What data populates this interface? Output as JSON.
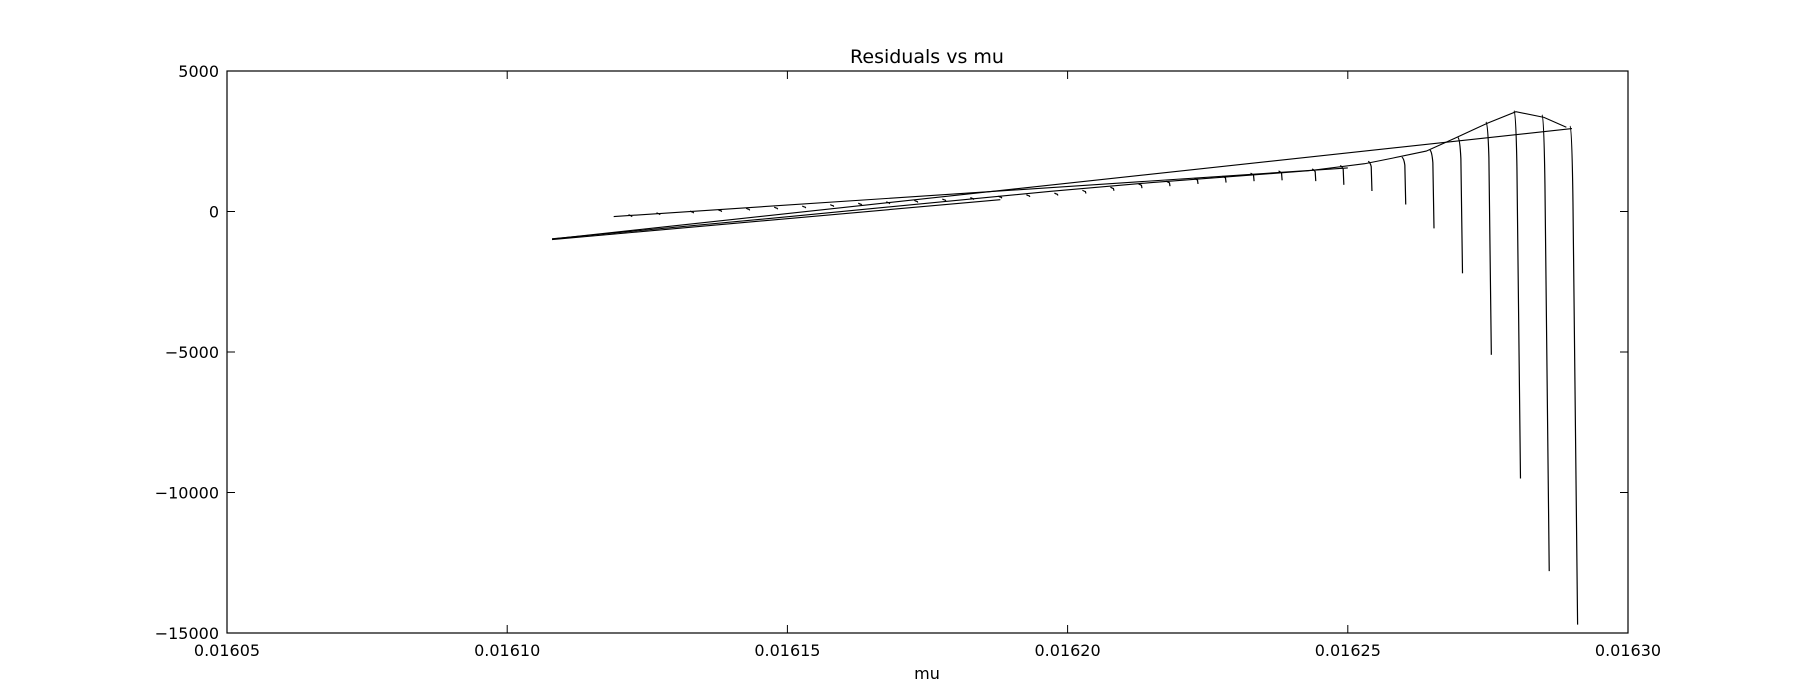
{
  "chart_data": {
    "type": "line",
    "title": "Residuals vs mu",
    "xlabel": "mu",
    "ylabel": "",
    "xlim": [
      0.01605,
      0.0163
    ],
    "ylim": [
      -15000,
      5000
    ],
    "x_ticks": [
      0.01605,
      0.0161,
      0.01615,
      0.0162,
      0.01625,
      0.0163
    ],
    "x_tick_labels": [
      "0.01605",
      "0.01610",
      "0.01615",
      "0.01620",
      "0.01625",
      "0.01630"
    ],
    "y_ticks": [
      5000,
      0,
      -5000,
      -10000,
      -15000
    ],
    "y_tick_labels": [
      "5000",
      "0",
      "−5000",
      "−10000",
      "−15000"
    ],
    "grid": false,
    "line_color": "#000000",
    "series": [
      {
        "values": [
          [
            0.016108,
            -1000
          ],
          [
            0.016188,
            420
          ]
        ]
      },
      {
        "values": [
          [
            0.016108,
            -980
          ],
          [
            0.01629,
            2950
          ]
        ]
      },
      {
        "values": [
          [
            0.016108,
            -970
          ],
          [
            0.016152,
            -150
          ],
          [
            0.016197,
            720
          ],
          [
            0.016215,
            1030
          ],
          [
            0.016243,
            1450
          ],
          [
            0.016253,
            1700
          ],
          [
            0.016258,
            1900
          ],
          [
            0.016264,
            2150
          ],
          [
            0.016269,
            2600
          ],
          [
            0.016275,
            3150
          ],
          [
            0.01628,
            3550
          ],
          [
            0.016285,
            3350
          ],
          [
            0.016289,
            3000
          ]
        ]
      },
      {
        "values": [
          [
            0.016119,
            -180
          ],
          [
            0.01625,
            1550
          ]
        ]
      }
    ],
    "spikes": [
      {
        "x": 0.016122,
        "top": -150,
        "bottom": -190
      },
      {
        "x": 0.016127,
        "top": -80,
        "bottom": -120
      },
      {
        "x": 0.016133,
        "top": -20,
        "bottom": -60
      },
      {
        "x": 0.016138,
        "top": 30,
        "bottom": -10
      },
      {
        "x": 0.016143,
        "top": 80,
        "bottom": 40
      },
      {
        "x": 0.016148,
        "top": 120,
        "bottom": 80
      },
      {
        "x": 0.016153,
        "top": 160,
        "bottom": 120
      },
      {
        "x": 0.016158,
        "top": 210,
        "bottom": 170
      },
      {
        "x": 0.016163,
        "top": 260,
        "bottom": 220
      },
      {
        "x": 0.016168,
        "top": 310,
        "bottom": 270
      },
      {
        "x": 0.016173,
        "top": 360,
        "bottom": 320
      },
      {
        "x": 0.016178,
        "top": 410,
        "bottom": 370
      },
      {
        "x": 0.016183,
        "top": 460,
        "bottom": 420
      },
      {
        "x": 0.016188,
        "top": 510,
        "bottom": 470
      },
      {
        "x": 0.016193,
        "top": 560,
        "bottom": 520
      },
      {
        "x": 0.016198,
        "top": 620,
        "bottom": 570
      },
      {
        "x": 0.016203,
        "top": 720,
        "bottom": 640
      },
      {
        "x": 0.016208,
        "top": 830,
        "bottom": 740
      },
      {
        "x": 0.016213,
        "top": 950,
        "bottom": 830
      },
      {
        "x": 0.016218,
        "top": 1040,
        "bottom": 900
      },
      {
        "x": 0.016223,
        "top": 1140,
        "bottom": 980
      },
      {
        "x": 0.016228,
        "top": 1220,
        "bottom": 1030
      },
      {
        "x": 0.016233,
        "top": 1330,
        "bottom": 1080
      },
      {
        "x": 0.016238,
        "top": 1410,
        "bottom": 1110
      },
      {
        "x": 0.016244,
        "top": 1480,
        "bottom": 1080
      },
      {
        "x": 0.016249,
        "top": 1600,
        "bottom": 950
      },
      {
        "x": 0.016254,
        "top": 1750,
        "bottom": 730
      },
      {
        "x": 0.01626,
        "top": 1900,
        "bottom": 250
      },
      {
        "x": 0.016265,
        "top": 2150,
        "bottom": -600
      },
      {
        "x": 0.01627,
        "top": 2600,
        "bottom": -2200
      },
      {
        "x": 0.016275,
        "top": 3150,
        "bottom": -5100
      },
      {
        "x": 0.01628,
        "top": 3550,
        "bottom": -9500
      },
      {
        "x": 0.016285,
        "top": 3400,
        "bottom": -12800
      },
      {
        "x": 0.01629,
        "top": 3000,
        "bottom": -14700
      }
    ]
  }
}
